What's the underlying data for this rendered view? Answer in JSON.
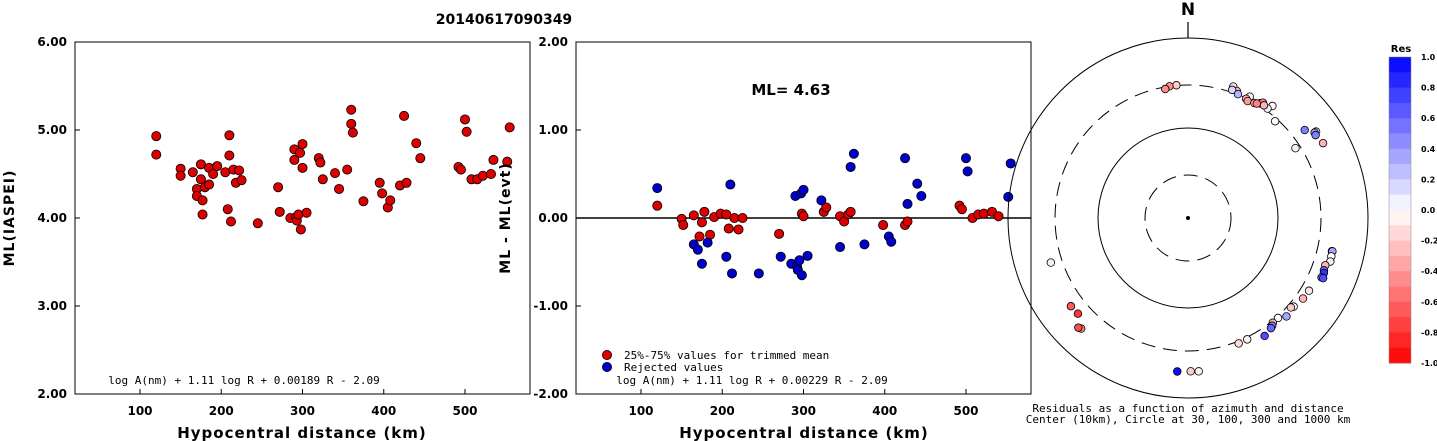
{
  "figure": {
    "title": "20140617090349"
  },
  "chart_data": [
    {
      "type": "scatter",
      "ylabel": "ML(IASPEI)",
      "xlabel": "Hypocentral distance (km)",
      "xlim": [
        20,
        580
      ],
      "ylim": [
        2.0,
        6.0
      ],
      "xticks": [
        "100",
        "200",
        "300",
        "400",
        "500"
      ],
      "xtick_values": [
        100,
        200,
        300,
        400,
        500
      ],
      "yticks": [
        "2.00",
        "3.00",
        "4.00",
        "5.00",
        "6.00"
      ],
      "ytick_values": [
        2.0,
        3.0,
        4.0,
        5.0,
        6.0
      ],
      "formula": "log A(nm) + 1.11 log R + 0.00189 R - 2.09",
      "grid": false,
      "series": [
        {
          "color": "#dd0000",
          "points": [
            [
              120,
              4.93
            ],
            [
              120,
              4.72
            ],
            [
              150,
              4.56
            ],
            [
              150,
              4.48
            ],
            [
              165,
              4.52
            ],
            [
              170,
              4.33
            ],
            [
              170,
              4.25
            ],
            [
              175,
              4.61
            ],
            [
              175,
              4.44
            ],
            [
              177,
              4.2
            ],
            [
              177,
              4.04
            ],
            [
              180,
              4.35
            ],
            [
              185,
              4.57
            ],
            [
              185,
              4.38
            ],
            [
              190,
              4.5
            ],
            [
              195,
              4.59
            ],
            [
              205,
              4.52
            ],
            [
              208,
              4.1
            ],
            [
              210,
              4.94
            ],
            [
              210,
              4.71
            ],
            [
              212,
              3.96
            ],
            [
              215,
              4.55
            ],
            [
              218,
              4.4
            ],
            [
              222,
              4.54
            ],
            [
              225,
              4.43
            ],
            [
              245,
              3.94
            ],
            [
              270,
              4.35
            ],
            [
              272,
              4.07
            ],
            [
              285,
              4.0
            ],
            [
              290,
              4.78
            ],
            [
              290,
              4.66
            ],
            [
              292,
              4.01
            ],
            [
              293,
              3.97
            ],
            [
              295,
              4.04
            ],
            [
              297,
              4.74
            ],
            [
              298,
              3.87
            ],
            [
              300,
              4.84
            ],
            [
              300,
              4.57
            ],
            [
              305,
              4.06
            ],
            [
              320,
              4.68
            ],
            [
              322,
              4.63
            ],
            [
              325,
              4.44
            ],
            [
              340,
              4.51
            ],
            [
              345,
              4.33
            ],
            [
              355,
              4.55
            ],
            [
              360,
              5.23
            ],
            [
              360,
              5.07
            ],
            [
              362,
              4.97
            ],
            [
              375,
              4.19
            ],
            [
              395,
              4.4
            ],
            [
              398,
              4.28
            ],
            [
              405,
              4.12
            ],
            [
              408,
              4.2
            ],
            [
              420,
              4.37
            ],
            [
              425,
              5.16
            ],
            [
              428,
              4.4
            ],
            [
              440,
              4.85
            ],
            [
              445,
              4.68
            ],
            [
              492,
              4.58
            ],
            [
              495,
              4.55
            ],
            [
              500,
              5.12
            ],
            [
              502,
              4.98
            ],
            [
              508,
              4.44
            ],
            [
              515,
              4.44
            ],
            [
              522,
              4.48
            ],
            [
              532,
              4.5
            ],
            [
              535,
              4.66
            ],
            [
              552,
              4.64
            ],
            [
              555,
              5.03
            ]
          ]
        }
      ]
    },
    {
      "type": "scatter",
      "ylabel": "ML - ML(evt)",
      "xlabel": "Hypocentral distance (km)",
      "xlim": [
        20,
        580
      ],
      "ylim": [
        -2.0,
        2.0
      ],
      "xticks": [
        "100",
        "200",
        "300",
        "400",
        "500"
      ],
      "xtick_values": [
        100,
        200,
        300,
        400,
        500
      ],
      "yticks": [
        "-2.00",
        "-1.00",
        "0.00",
        "1.00",
        "2.00"
      ],
      "ytick_values": [
        -2.0,
        -1.0,
        0.0,
        1.0,
        2.0
      ],
      "reference_line": 0.0,
      "annotation": "ML=  4.63",
      "formula": "log A(nm) + 1.11 log R + 0.00229 R - 2.09",
      "legend_position": "bottom-left",
      "grid": false,
      "series": [
        {
          "name": "25%-75% values for trimmed mean",
          "color": "#dd0000",
          "points": [
            [
              120,
              0.14
            ],
            [
              150,
              -0.01
            ],
            [
              152,
              -0.08
            ],
            [
              165,
              0.03
            ],
            [
              172,
              -0.21
            ],
            [
              175,
              -0.05
            ],
            [
              178,
              0.07
            ],
            [
              185,
              -0.19
            ],
            [
              190,
              0.01
            ],
            [
              198,
              0.05
            ],
            [
              205,
              0.04
            ],
            [
              208,
              -0.12
            ],
            [
              215,
              0.0
            ],
            [
              220,
              -0.13
            ],
            [
              225,
              0.0
            ],
            [
              270,
              -0.18
            ],
            [
              298,
              0.05
            ],
            [
              300,
              0.02
            ],
            [
              325,
              0.07
            ],
            [
              328,
              0.12
            ],
            [
              345,
              0.02
            ],
            [
              350,
              -0.04
            ],
            [
              355,
              0.04
            ],
            [
              358,
              0.07
            ],
            [
              398,
              -0.08
            ],
            [
              425,
              -0.08
            ],
            [
              428,
              -0.04
            ],
            [
              492,
              0.14
            ],
            [
              495,
              0.1
            ],
            [
              508,
              0.0
            ],
            [
              515,
              0.04
            ],
            [
              522,
              0.05
            ],
            [
              532,
              0.07
            ],
            [
              540,
              0.02
            ]
          ]
        },
        {
          "name": "Rejected values",
          "color": "#0000cc",
          "points": [
            [
              120,
              0.34
            ],
            [
              165,
              -0.3
            ],
            [
              170,
              -0.36
            ],
            [
              175,
              -0.52
            ],
            [
              182,
              -0.28
            ],
            [
              205,
              -0.44
            ],
            [
              210,
              0.38
            ],
            [
              212,
              -0.63
            ],
            [
              245,
              -0.63
            ],
            [
              272,
              -0.44
            ],
            [
              285,
              -0.52
            ],
            [
              290,
              0.25
            ],
            [
              292,
              -0.55
            ],
            [
              293,
              -0.59
            ],
            [
              295,
              -0.48
            ],
            [
              297,
              0.28
            ],
            [
              298,
              -0.65
            ],
            [
              300,
              0.32
            ],
            [
              305,
              -0.43
            ],
            [
              322,
              0.2
            ],
            [
              345,
              -0.33
            ],
            [
              358,
              0.58
            ],
            [
              362,
              0.73
            ],
            [
              375,
              -0.3
            ],
            [
              405,
              -0.21
            ],
            [
              408,
              -0.27
            ],
            [
              425,
              0.68
            ],
            [
              428,
              0.16
            ],
            [
              440,
              0.39
            ],
            [
              445,
              0.25
            ],
            [
              500,
              0.68
            ],
            [
              502,
              0.53
            ],
            [
              552,
              0.24
            ],
            [
              555,
              0.62
            ]
          ]
        }
      ]
    },
    {
      "type": "scatter",
      "subtype": "polar",
      "north_label": "N",
      "caption_line1": "Residuals as a function of azimuth and distance",
      "caption_line2": "Center (10km), Circle at 30, 100, 300 and 1000 km",
      "rings_km": [
        30,
        100,
        300,
        1000
      ],
      "points": [
        {
          "azimuth": 37,
          "distance_km": 361,
          "residual": 0.0
        },
        {
          "azimuth": 19,
          "distance_km": 350,
          "residual": -0.1
        },
        {
          "azimuth": 21,
          "distance_km": 325,
          "residual": -0.3
        },
        {
          "azimuth": -5,
          "distance_km": 302,
          "residual": -0.2
        },
        {
          "azimuth": 56,
          "distance_km": 520,
          "residual": 0.0
        },
        {
          "azimuth": 36,
          "distance_km": 318,
          "residual": 0.05
        },
        {
          "azimuth": 57,
          "distance_km": 265,
          "residual": 0.05
        },
        {
          "azimuth": 42,
          "distance_km": 279,
          "residual": 0.0
        },
        {
          "azimuth": 56,
          "distance_km": 497,
          "residual": 0.4
        },
        {
          "azimuth": 57,
          "distance_km": 490,
          "residual": 0.5
        },
        {
          "azimuth": 61,
          "distance_km": 519,
          "residual": -0.3
        },
        {
          "azimuth": 53,
          "distance_km": 420,
          "residual": 0.5
        },
        {
          "azimuth": 19,
          "distance_km": 320,
          "residual": 0.15
        },
        {
          "azimuth": 22,
          "distance_km": 304,
          "residual": 0.3
        },
        {
          "azimuth": 27,
          "distance_km": 325,
          "residual": 0.05
        },
        {
          "azimuth": 26,
          "distance_km": 297,
          "residual": -0.3
        },
        {
          "azimuth": -8,
          "distance_km": 300,
          "residual": -0.45
        },
        {
          "azimuth": -10,
          "distance_km": 285,
          "residual": -0.45
        },
        {
          "azimuth": 32,
          "distance_km": 318,
          "residual": -0.6
        },
        {
          "azimuth": 33,
          "distance_km": 337,
          "residual": -0.45
        },
        {
          "azimuth": 34,
          "distance_km": 323,
          "residual": -0.3
        },
        {
          "azimuth": 27,
          "distance_km": 287,
          "residual": -0.4
        },
        {
          "azimuth": 30,
          "distance_km": 298,
          "residual": -0.35
        },
        {
          "azimuth": 31,
          "distance_km": 304,
          "residual": -0.5
        },
        {
          "azimuth": 103,
          "distance_km": 437,
          "residual": 0.05
        },
        {
          "azimuth": 103,
          "distance_km": 443,
          "residual": 0.35
        },
        {
          "azimuth": 105,
          "distance_km": 445,
          "residual": 0.0
        },
        {
          "azimuth": 107,
          "distance_km": 450,
          "residual": 0.05
        },
        {
          "azimuth": 109,
          "distance_km": 410,
          "residual": -0.3
        },
        {
          "azimuth": 111,
          "distance_km": 414,
          "residual": 0.6
        },
        {
          "azimuth": 112,
          "distance_km": 425,
          "residual": 0.8
        },
        {
          "azimuth": 114,
          "distance_km": 420,
          "residual": 0.55
        },
        {
          "azimuth": 114,
          "distance_km": 440,
          "residual": 0.7
        },
        {
          "azimuth": 121,
          "distance_km": 370,
          "residual": -0.1
        },
        {
          "azimuth": 125,
          "distance_km": 363,
          "residual": -0.3
        },
        {
          "azimuth": 130,
          "distance_km": 340,
          "residual": 0.0
        },
        {
          "azimuth": 131,
          "distance_km": 327,
          "residual": -0.2
        },
        {
          "azimuth": 135,
          "distance_km": 352,
          "residual": 0.35
        },
        {
          "azimuth": 138,
          "distance_km": 312,
          "residual": 0.0
        },
        {
          "azimuth": 141,
          "distance_km": 314,
          "residual": -0.3
        },
        {
          "azimuth": 142,
          "distance_km": 330,
          "residual": 0.45
        },
        {
          "azimuth": 143,
          "distance_km": 340,
          "residual": 0.6
        },
        {
          "azimuth": 147,
          "distance_km": 365,
          "residual": 0.7
        },
        {
          "azimuth": 154,
          "distance_km": 316,
          "residual": -0.05
        },
        {
          "azimuth": 158,
          "distance_km": 318,
          "residual": -0.15
        },
        {
          "azimuth": 176,
          "distance_km": 510,
          "residual": -0.05
        },
        {
          "azimuth": 179,
          "distance_km": 505,
          "residual": -0.2
        },
        {
          "azimuth": 184,
          "distance_km": 512,
          "residual": 0.95
        },
        {
          "azimuth": 224,
          "distance_km": 510,
          "residual": -0.5
        },
        {
          "azimuth": 225,
          "distance_km": 528,
          "residual": -0.7
        },
        {
          "azimuth": 229,
          "distance_km": 417,
          "residual": -0.8
        },
        {
          "azimuth": 233,
          "distance_km": 425,
          "residual": -0.65
        },
        {
          "azimuth": 252,
          "distance_km": 400,
          "residual": 0.05
        }
      ]
    },
    {
      "type": "heatmap",
      "subtype": "colorbar",
      "title": "Res",
      "ticks": [
        "1.0",
        "0.8",
        "0.6",
        "0.4",
        "0.2",
        "0.0",
        "-0.2",
        "-0.4",
        "-0.6",
        "-0.8",
        "-1.0"
      ],
      "tick_values": [
        1.0,
        0.8,
        0.6,
        0.4,
        0.2,
        0.0,
        -0.2,
        -0.4,
        -0.6,
        -0.8,
        -1.0
      ],
      "positive_color": "#0000ff",
      "negative_color": "#ff0000",
      "zero_color": "#ffffff"
    }
  ]
}
